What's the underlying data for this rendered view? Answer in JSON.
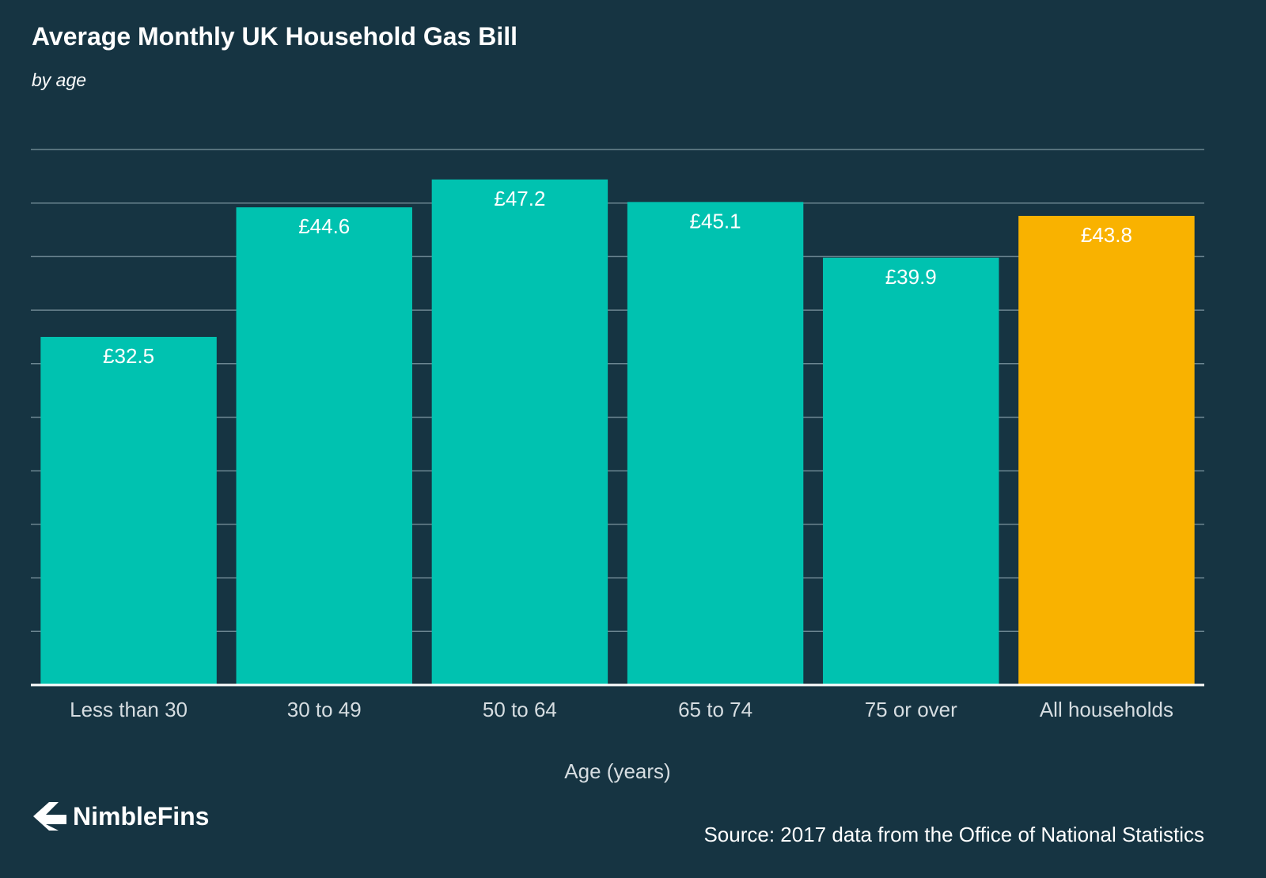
{
  "chart_data": {
    "type": "bar",
    "title": "Average Monthly UK Household Gas Bill",
    "subtitle": "by age",
    "xlabel": "Age (years)",
    "ylabel": "",
    "categories": [
      "Less than 30",
      "30 to 49",
      "50 to 64",
      "65 to 74",
      "75 or over",
      "All households"
    ],
    "values": [
      32.5,
      44.6,
      47.2,
      45.1,
      39.9,
      43.8
    ],
    "value_labels": [
      "£32.5",
      "£44.6",
      "£47.2",
      "£45.1",
      "£39.9",
      "£43.8"
    ],
    "ylim": [
      0,
      50
    ],
    "grid": true,
    "colors": [
      "#00c2b0",
      "#00c2b0",
      "#00c2b0",
      "#00c2b0",
      "#00c2b0",
      "#f9b200"
    ]
  },
  "footer": {
    "brand": "NimbleFins",
    "source": "Source: 2017 data from the Office of National Statistics"
  },
  "theme": {
    "background": "#163442",
    "grid_color": "#6b8590",
    "accent": "#00c2b0",
    "highlight": "#f9b200"
  }
}
